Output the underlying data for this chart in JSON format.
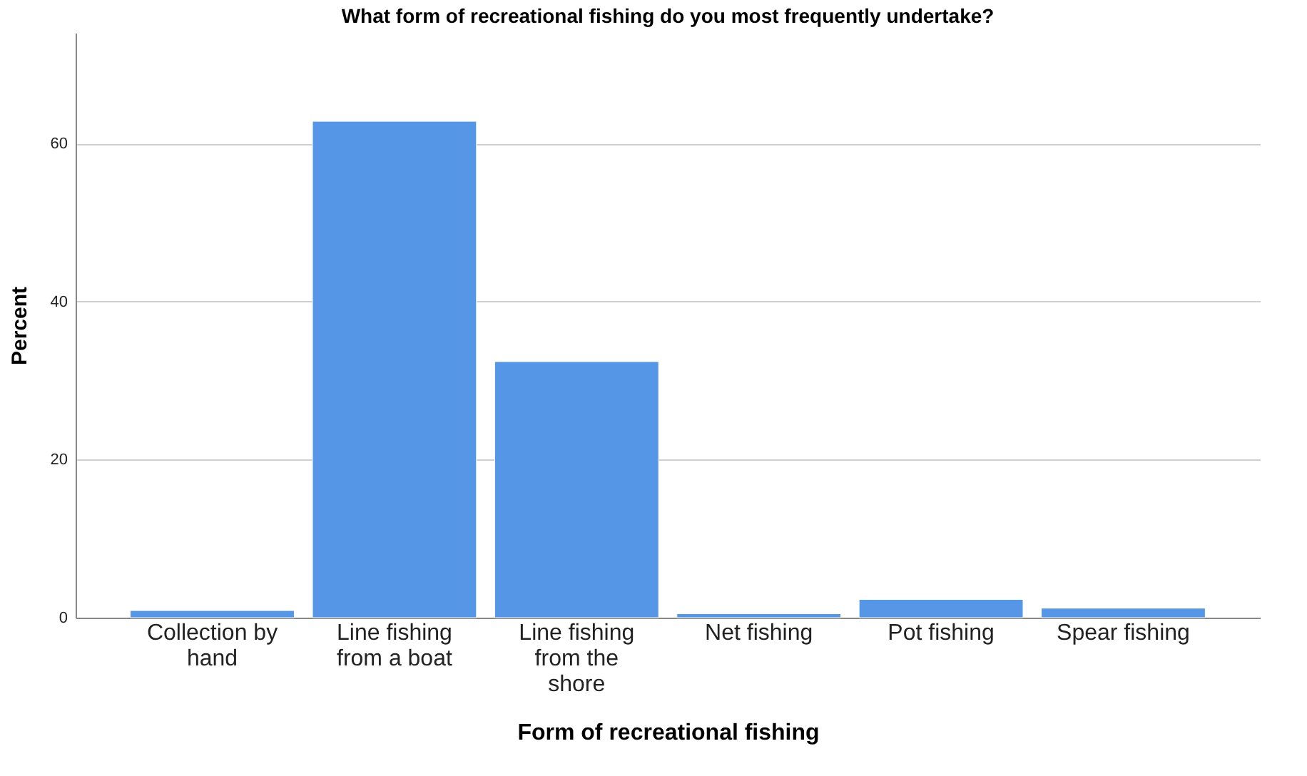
{
  "chart_data": {
    "type": "bar",
    "title": "What form of recreational fishing do you most frequently undertake?",
    "xlabel": "Form of recreational fishing",
    "ylabel": "Percent",
    "categories": [
      "Collection by hand",
      "Line fishing from a boat",
      "Line fishing from the shore",
      "Net fishing",
      "Pot fishing",
      "Spear fishing"
    ],
    "values": [
      0.9,
      62.8,
      32.4,
      0.5,
      2.3,
      1.2
    ],
    "color": "#5596e6",
    "ylim": [
      0,
      74
    ],
    "yticks": [
      0,
      20,
      40,
      60
    ],
    "grid": "y"
  }
}
